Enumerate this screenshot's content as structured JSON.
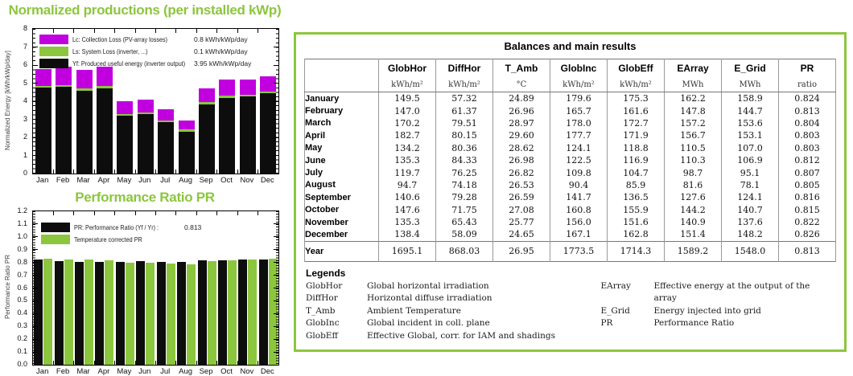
{
  "colors": {
    "accent_green": "#8CC63E",
    "loss_magenta": "#C100DF",
    "bar_black": "#0D0D0D",
    "table_border": "#777777"
  },
  "charts": {
    "normalized": {
      "title": "Normalized productions (per installed kWp)",
      "ylabel": "Normalized Energy [kWh/kWp/day]",
      "legend": [
        {
          "key": "lc",
          "color": "#C100DF",
          "label": "Lc: Collection Loss (PV-array losses)",
          "value": "0.8 kWh/kWp/day"
        },
        {
          "key": "ls",
          "color": "#8CC63E",
          "label": "Ls: System Loss  (inverter, ...)",
          "value": "0.1 kWh/kWp/day"
        },
        {
          "key": "yf",
          "color": "#0D0D0D",
          "label": "Yf: Produced useful energy  (inverter output)",
          "value": "3.95 kWh/kWp/day"
        }
      ]
    },
    "pr": {
      "title": "Performance Ratio PR",
      "ylabel": "Performance Ratio PR",
      "legend": [
        {
          "key": "pr",
          "color": "#0D0D0D",
          "label": "PR: Performance Ratio (Yf / Yr) :",
          "value": "0.813"
        },
        {
          "key": "pr_tc",
          "color": "#8CC63E",
          "label": "Temperature corrected PR",
          "value": ""
        }
      ]
    }
  },
  "chart_data": [
    {
      "type": "bar",
      "stacked": true,
      "title": "Normalized productions (per installed kWp)",
      "categories": [
        "Jan",
        "Feb",
        "Mar",
        "Apr",
        "May",
        "Jun",
        "Jul",
        "Aug",
        "Sep",
        "Oct",
        "Nov",
        "Dec"
      ],
      "series": [
        {
          "name": "Yf: Produced useful energy (inverter output)",
          "color": "#0D0D0D",
          "values": [
            4.75,
            4.78,
            4.59,
            4.73,
            3.2,
            3.3,
            2.84,
            2.33,
            3.83,
            4.2,
            4.25,
            4.43
          ]
        },
        {
          "name": "Ls: System Loss (inverter, ...)",
          "color": "#8CC63E",
          "values": [
            0.1,
            0.1,
            0.11,
            0.11,
            0.1,
            0.1,
            0.11,
            0.1,
            0.11,
            0.1,
            0.1,
            0.1
          ]
        },
        {
          "name": "Lc: Collection Loss (PV-array losses)",
          "color": "#C100DF",
          "values": [
            0.94,
            1.04,
            1.04,
            1.08,
            0.7,
            0.68,
            0.59,
            0.49,
            0.78,
            0.89,
            0.85,
            0.86
          ]
        }
      ],
      "ylabel": "Normalized Energy [kWh/kWp/day]",
      "ylim": [
        0,
        8
      ],
      "grid": false,
      "legend_position": "upper-left-inside"
    },
    {
      "type": "bar",
      "stacked": false,
      "title": "Performance Ratio PR",
      "categories": [
        "Jan",
        "Feb",
        "Mar",
        "Apr",
        "May",
        "Jun",
        "Jul",
        "Aug",
        "Sep",
        "Oct",
        "Nov",
        "Dec"
      ],
      "series": [
        {
          "name": "PR: Performance Ratio (Yf / Yr) : 0.813",
          "color": "#0D0D0D",
          "values": [
            0.824,
            0.813,
            0.804,
            0.803,
            0.803,
            0.812,
            0.807,
            0.805,
            0.816,
            0.815,
            0.822,
            0.826
          ]
        },
        {
          "name": "Temperature corrected PR",
          "color": "#8CC63E",
          "values": [
            0.83,
            0.826,
            0.82,
            0.819,
            0.798,
            0.8,
            0.791,
            0.786,
            0.81,
            0.818,
            0.824,
            0.83
          ]
        }
      ],
      "ylabel": "Performance Ratio PR",
      "ylim": [
        0,
        1.2
      ],
      "grid": false,
      "legend_position": "upper-left-inside"
    }
  ],
  "table": {
    "title": "Balances and main results",
    "columns": [
      "",
      "GlobHor",
      "DiffHor",
      "T_Amb",
      "GlobInc",
      "GlobEff",
      "EArray",
      "E_Grid",
      "PR"
    ],
    "units": [
      "",
      "kWh/m²",
      "kWh/m²",
      "°C",
      "kWh/m²",
      "kWh/m²",
      "MWh",
      "MWh",
      "ratio"
    ],
    "rows": [
      [
        "January",
        "149.5",
        "57.32",
        "24.89",
        "179.6",
        "175.3",
        "162.2",
        "158.9",
        "0.824"
      ],
      [
        "February",
        "147.0",
        "61.37",
        "26.96",
        "165.7",
        "161.6",
        "147.8",
        "144.7",
        "0.813"
      ],
      [
        "March",
        "170.2",
        "79.51",
        "28.97",
        "178.0",
        "172.7",
        "157.2",
        "153.6",
        "0.804"
      ],
      [
        "April",
        "182.7",
        "80.15",
        "29.60",
        "177.7",
        "171.9",
        "156.7",
        "153.1",
        "0.803"
      ],
      [
        "May",
        "134.2",
        "80.36",
        "28.62",
        "124.1",
        "118.8",
        "110.5",
        "107.0",
        "0.803"
      ],
      [
        "June",
        "135.3",
        "84.33",
        "26.98",
        "122.5",
        "116.9",
        "110.3",
        "106.9",
        "0.812"
      ],
      [
        "July",
        "119.7",
        "76.25",
        "26.82",
        "109.8",
        "104.7",
        "98.7",
        "95.1",
        "0.807"
      ],
      [
        "August",
        "94.7",
        "74.18",
        "26.53",
        "90.4",
        "85.9",
        "81.6",
        "78.1",
        "0.805"
      ],
      [
        "September",
        "140.6",
        "79.28",
        "26.59",
        "141.7",
        "136.5",
        "127.6",
        "124.1",
        "0.816"
      ],
      [
        "October",
        "147.6",
        "71.75",
        "27.08",
        "160.8",
        "155.9",
        "144.2",
        "140.7",
        "0.815"
      ],
      [
        "November",
        "135.3",
        "65.43",
        "25.77",
        "156.0",
        "151.6",
        "140.9",
        "137.6",
        "0.822"
      ],
      [
        "December",
        "138.4",
        "58.09",
        "24.65",
        "167.1",
        "162.8",
        "151.4",
        "148.2",
        "0.826"
      ]
    ],
    "year_row": [
      "Year",
      "1695.1",
      "868.03",
      "26.95",
      "1773.5",
      "1714.3",
      "1589.2",
      "1548.0",
      "0.813"
    ]
  },
  "legends": {
    "title": "Legends",
    "left": [
      [
        "GlobHor",
        "Global horizontal irradiation"
      ],
      [
        "DiffHor",
        "Horizontal diffuse irradiation"
      ],
      [
        "T_Amb",
        "Ambient Temperature"
      ],
      [
        "GlobInc",
        "Global incident in coll. plane"
      ],
      [
        "GlobEff",
        "Effective Global, corr. for IAM and shadings"
      ]
    ],
    "right": [
      [
        "EArray",
        "Effective energy at the output of the array"
      ],
      [
        "E_Grid",
        "Energy injected into grid"
      ],
      [
        "PR",
        "Performance Ratio"
      ]
    ]
  }
}
